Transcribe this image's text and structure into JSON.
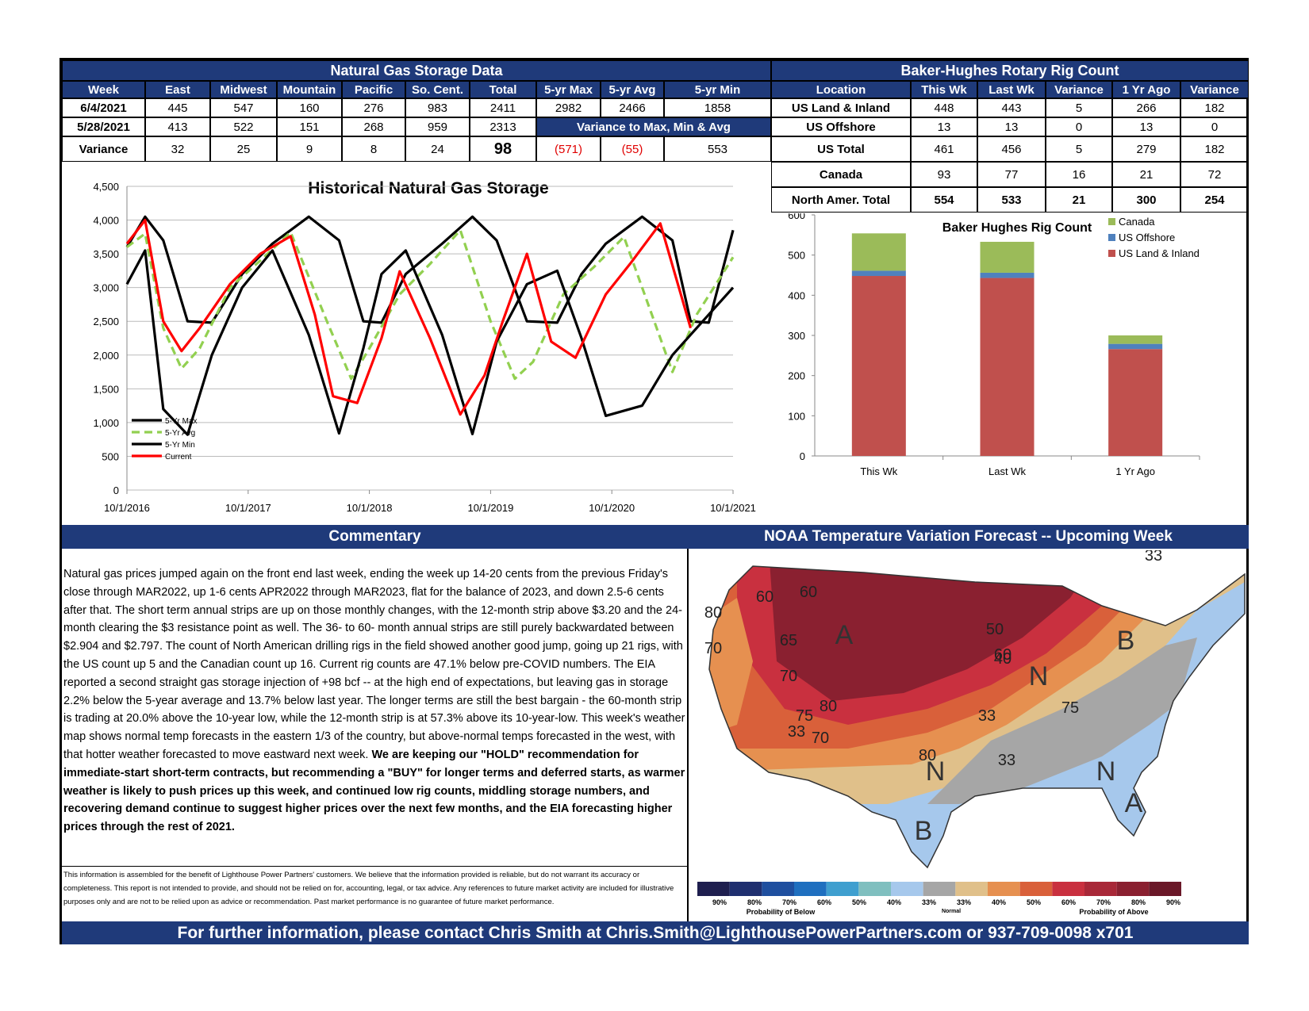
{
  "storage": {
    "title": "Natural Gas Storage Data",
    "headers": [
      "Week",
      "East",
      "Midwest",
      "Mountain",
      "Pacific",
      "So. Cent.",
      "Total",
      "5-yr Max",
      "5-yr Avg",
      "5-yr Min"
    ],
    "row1": [
      "6/4/2021",
      "445",
      "547",
      "160",
      "276",
      "983",
      "2411",
      "2982",
      "2466",
      "1858"
    ],
    "row2": [
      "5/28/2021",
      "413",
      "522",
      "151",
      "268",
      "959",
      "2313"
    ],
    "variance_banner": "Variance to Max, Min & Avg",
    "row3": [
      "Variance",
      "32",
      "25",
      "9",
      "8",
      "24",
      "98",
      "(571)",
      "(55)",
      "553"
    ]
  },
  "rig": {
    "title": "Baker-Hughes Rotary Rig Count",
    "headers": [
      "Location",
      "This Wk",
      "Last Wk",
      "Variance",
      "1 Yr Ago",
      "Variance"
    ],
    "rows": [
      [
        "US Land & Inland",
        "448",
        "443",
        "5",
        "266",
        "182"
      ],
      [
        "US Offshore",
        "13",
        "13",
        "0",
        "13",
        "0"
      ],
      [
        "US Total",
        "461",
        "456",
        "5",
        "279",
        "182"
      ],
      [
        "Canada",
        "93",
        "77",
        "16",
        "21",
        "72"
      ],
      [
        "North Amer. Total",
        "554",
        "533",
        "21",
        "300",
        "254"
      ]
    ]
  },
  "storage_chart": {
    "title": "Historical Natural Gas Storage",
    "y_ticks": [
      "4,500",
      "4,000",
      "3,500",
      "3,000",
      "2,500",
      "2,000",
      "1,500",
      "1,000",
      "500",
      "0"
    ],
    "x_ticks": [
      "10/1/2016",
      "10/1/2017",
      "10/1/2018",
      "10/1/2019",
      "10/1/2020",
      "10/1/2021"
    ],
    "legend": [
      "5-Yr Max",
      "5-Yr Avg",
      "5-Yr Min",
      "Current"
    ]
  },
  "chart_data": [
    {
      "type": "line",
      "title": "Historical Natural Gas Storage",
      "ylim": [
        0,
        4500
      ],
      "x_range": [
        "10/1/2016",
        "10/1/2021"
      ],
      "series": [
        {
          "name": "5-Yr Max",
          "x": [
            0,
            0.03,
            0.06,
            0.1,
            0.14,
            0.19,
            0.24,
            0.3,
            0.35,
            0.39,
            0.42,
            0.46,
            0.52,
            0.57,
            0.61,
            0.66,
            0.71,
            0.75,
            0.79,
            0.85,
            0.9,
            0.93,
            0.96,
            1.0
          ],
          "values": [
            3600,
            4050,
            3700,
            2500,
            2480,
            3200,
            3650,
            4050,
            3700,
            2500,
            2480,
            3200,
            3650,
            4050,
            3700,
            2500,
            2480,
            3200,
            3650,
            4050,
            3700,
            2500,
            2480,
            3850
          ]
        },
        {
          "name": "5-Yr Avg",
          "x": [
            0,
            0.03,
            0.06,
            0.09,
            0.12,
            0.17,
            0.22,
            0.27,
            0.33,
            0.37,
            0.4,
            0.45,
            0.5,
            0.55,
            0.6,
            0.64,
            0.67,
            0.72,
            0.77,
            0.82,
            0.87,
            0.9,
            0.94,
            1.0
          ],
          "values": [
            3600,
            3800,
            2400,
            1800,
            2100,
            3000,
            3400,
            3820,
            2500,
            1650,
            2100,
            2900,
            3350,
            3850,
            2500,
            1650,
            1900,
            2900,
            3300,
            3750,
            2500,
            1750,
            2600,
            3450
          ]
        },
        {
          "name": "5-Yr Min",
          "x": [
            0,
            0.03,
            0.06,
            0.1,
            0.14,
            0.19,
            0.24,
            0.3,
            0.35,
            0.39,
            0.42,
            0.46,
            0.52,
            0.57,
            0.61,
            0.66,
            0.71,
            0.75,
            0.79,
            0.85,
            0.9,
            0.93,
            0.96,
            1.0
          ],
          "values": [
            3050,
            3550,
            1200,
            820,
            2000,
            3000,
            3550,
            2300,
            840,
            2100,
            3200,
            3550,
            2300,
            830,
            2200,
            3050,
            3250,
            2250,
            1100,
            1250,
            2000,
            2300,
            2600,
            3000
          ]
        },
        {
          "name": "Current",
          "x": [
            0,
            0.03,
            0.06,
            0.09,
            0.12,
            0.17,
            0.22,
            0.27,
            0.31,
            0.34,
            0.38,
            0.42,
            0.45,
            0.5,
            0.55,
            0.59,
            0.62,
            0.66,
            0.7,
            0.74,
            0.79,
            0.83,
            0.88,
            0.93
          ],
          "values": [
            3650,
            4000,
            2500,
            2060,
            2400,
            3050,
            3500,
            3760,
            2600,
            1390,
            1290,
            2250,
            3240,
            2250,
            1120,
            1700,
            2500,
            3500,
            2200,
            1960,
            2900,
            3350,
            3950,
            2400
          ]
        }
      ]
    },
    {
      "type": "bar",
      "title": "Baker Hughes Rig Count",
      "categories": [
        "This Wk",
        "Last Wk",
        "1 Yr Ago"
      ],
      "ylim": [
        0,
        600
      ],
      "y_ticks": [
        "600",
        "500",
        "400",
        "300",
        "200",
        "100",
        "0"
      ],
      "series": [
        {
          "name": "US Land & Inland",
          "values": [
            448,
            443,
            266
          ],
          "color": "#c0504d"
        },
        {
          "name": "US Offshore",
          "values": [
            13,
            13,
            13
          ],
          "color": "#4f81bd"
        },
        {
          "name": "Canada",
          "values": [
            93,
            77,
            21
          ],
          "color": "#9bbb59"
        }
      ],
      "legend": [
        "Canada",
        "US Offshore",
        "US Land & Inland"
      ]
    }
  ],
  "commentary": {
    "title": "Commentary",
    "text": "Natural gas prices jumped again on the front end last week, ending the week up 14-20 cents from the previous Friday's close through MAR2022, up 1-6 cents APR2022 through MAR2023, flat for the balance of 2023, and down 2.5-6 cents after that.  The short term annual strips are up on those monthly changes, with the 12-month strip above $3.20 and the 24-month clearing the $3 resistance point as well.  The 36- to 60- month annual strips are still purely backwardated between $2.904 and $2.797.  The count of North American drilling rigs in the field showed another good jump, going up 21 rigs, with the US count up 5 and the Canadian count up 16.  Current rig counts are 47.1% below pre-COVID numbers. The EIA reported a second straight gas storage injection of +98 bcf -- at the high end of expectations, but leaving gas in storage 2.2% below the 5-year average and 13.7% below last year.  The longer terms are still the best bargain - the 60-month strip is trading at 20.0% above the 10-year low, while the 12-month strip is at 57.3% above its 10-year-low.  This week's weather map shows normal temp forecasts in the eastern 1/3 of the country, but above-normal temps forecasted in the west, with that hotter weather forecasted to move eastward next week.  ",
    "bold": "We are keeping our \"HOLD\" recommendation for immediate-start short-term contracts, but recommending a \"BUY\" for longer terms and deferred starts, as warmer weather is likely to push prices up this week, and continued low rig counts, middling storage numbers, and recovering demand continue to suggest higher prices over the next few months, and the EIA forecasting higher prices through the rest of 2021.",
    "disclaimer": "This information is assembled for the benefit of Lighthouse Power Partners' customers.    We believe that the information provided is reliable, but do not warrant its accuracy or completeness.  This  report is not intended to provide, and should not be relied on for, accounting, legal, or tax advice.   Any references to future market activity are included for illustrative purposes only and are not to be relied upon as advice or recommendation.    Past market performance is no guarantee of future market performance."
  },
  "noaa": {
    "title": "NOAA Temperature Variation Forecast -- Upcoming Week",
    "map_labels": [
      "60",
      "60",
      "80",
      "70",
      "65",
      "70",
      "75",
      "70",
      "80",
      "60",
      "50",
      "40",
      "33",
      "33",
      "80",
      "33",
      "75",
      "33",
      "A",
      "N",
      "N",
      "N",
      "B",
      "B",
      "A"
    ],
    "scale_pct": [
      "90%",
      "80%",
      "70%",
      "60%",
      "50%",
      "40%",
      "33%",
      "33%",
      "40%",
      "50%",
      "60%",
      "70%",
      "80%",
      "90%"
    ],
    "scale_below": "Probability of Below",
    "scale_normal": "Normal",
    "scale_above": "Probability of Above",
    "scale_colors": [
      "#1f1f4f",
      "#1f2f6f",
      "#1f4f9f",
      "#1f6fbf",
      "#3f9fcf",
      "#7fbfbf",
      "#a6c8ec",
      "#a6a6a6",
      "#e0c08a",
      "#e69050",
      "#d9603a",
      "#c9303f",
      "#a82838",
      "#8a2030",
      "#6a1828"
    ]
  },
  "footer": "For further information, please contact Chris Smith at Chris.Smith@LighthousePowerPartners.com or 937-709-0098 x701"
}
